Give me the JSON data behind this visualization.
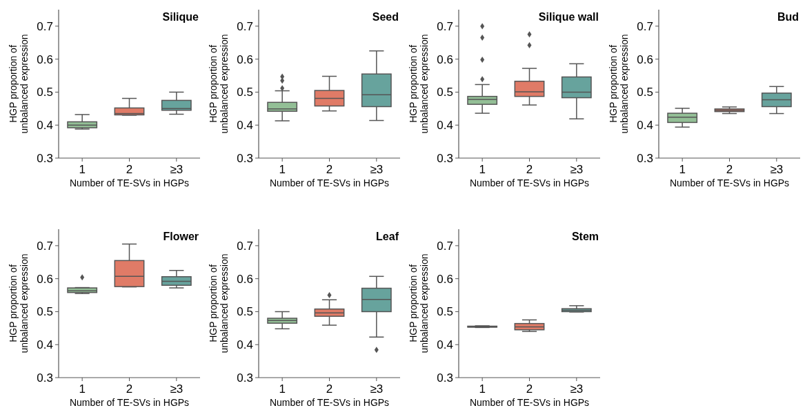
{
  "chart_data": [
    {
      "type": "box",
      "title": "Silique",
      "xlabel": "Number of TE-SVs in HGPs",
      "ylabel": "HGP proportion of\nunbalanced expression",
      "categories": [
        "1",
        "2",
        "≥3"
      ],
      "colors": [
        "#93bf96",
        "#e07b67",
        "#67a39d"
      ],
      "ylim": [
        0.3,
        0.75
      ],
      "yticks": [
        0.3,
        0.4,
        0.5,
        0.6,
        0.7
      ],
      "boxes": [
        {
          "low": 0.388,
          "q1": 0.392,
          "median": 0.4,
          "q3": 0.41,
          "high": 0.432
        },
        {
          "low": 0.43,
          "q1": 0.431,
          "median": 0.435,
          "q3": 0.452,
          "high": 0.481
        },
        {
          "low": 0.433,
          "q1": 0.445,
          "median": 0.45,
          "q3": 0.475,
          "high": 0.5
        }
      ]
    },
    {
      "type": "box",
      "title": "Seed",
      "xlabel": "Number of TE-SVs in HGPs",
      "ylabel": "HGP proportion of\nunbalanced expression",
      "categories": [
        "1",
        "2",
        "≥3"
      ],
      "colors": [
        "#93bf96",
        "#e07b67",
        "#67a39d"
      ],
      "ylim": [
        0.3,
        0.75
      ],
      "yticks": [
        0.3,
        0.4,
        0.5,
        0.6,
        0.7
      ],
      "boxes": [
        {
          "low": 0.413,
          "q1": 0.442,
          "median": 0.449,
          "q3": 0.469,
          "high": 0.504,
          "outliers": [
            0.547,
            0.535,
            0.512
          ]
        },
        {
          "low": 0.443,
          "q1": 0.458,
          "median": 0.481,
          "q3": 0.505,
          "high": 0.548
        },
        {
          "low": 0.414,
          "q1": 0.456,
          "median": 0.492,
          "q3": 0.555,
          "high": 0.625
        }
      ]
    },
    {
      "type": "box",
      "title": "Silique wall",
      "xlabel": "Number of TE-SVs in HGPs",
      "ylabel": "HGP proportion of\nunbalanced expression",
      "categories": [
        "1",
        "2",
        "≥3"
      ],
      "colors": [
        "#93bf96",
        "#e07b67",
        "#67a39d"
      ],
      "ylim": [
        0.3,
        0.75
      ],
      "yticks": [
        0.3,
        0.4,
        0.5,
        0.6,
        0.7
      ],
      "boxes": [
        {
          "low": 0.436,
          "q1": 0.463,
          "median": 0.478,
          "q3": 0.487,
          "high": 0.523,
          "outliers": [
            0.7,
            0.665,
            0.598,
            0.539
          ]
        },
        {
          "low": 0.461,
          "q1": 0.487,
          "median": 0.501,
          "q3": 0.533,
          "high": 0.572,
          "outliers": [
            0.675,
            0.642
          ]
        },
        {
          "low": 0.419,
          "q1": 0.483,
          "median": 0.5,
          "q3": 0.546,
          "high": 0.586
        }
      ]
    },
    {
      "type": "box",
      "title": "Bud",
      "xlabel": "Number of TE-SVs in HGPs",
      "ylabel": "HGP proportion of\nunbalanced expression",
      "categories": [
        "1",
        "2",
        "≥3"
      ],
      "colors": [
        "#93bf96",
        "#e07b67",
        "#67a39d"
      ],
      "ylim": [
        0.3,
        0.75
      ],
      "yticks": [
        0.3,
        0.4,
        0.5,
        0.6,
        0.7
      ],
      "boxes": [
        {
          "low": 0.394,
          "q1": 0.408,
          "median": 0.424,
          "q3": 0.436,
          "high": 0.451
        },
        {
          "low": 0.435,
          "q1": 0.441,
          "median": 0.445,
          "q3": 0.449,
          "high": 0.455
        },
        {
          "low": 0.435,
          "q1": 0.456,
          "median": 0.477,
          "q3": 0.497,
          "high": 0.517
        }
      ]
    },
    {
      "type": "box",
      "title": "Flower",
      "xlabel": "Number of TE-SVs in HGPs",
      "ylabel": "HGP proportion of\nunbalanced expression",
      "categories": [
        "1",
        "2",
        "≥3"
      ],
      "colors": [
        "#93bf96",
        "#e07b67",
        "#67a39d"
      ],
      "ylim": [
        0.3,
        0.75
      ],
      "yticks": [
        0.3,
        0.4,
        0.5,
        0.6,
        0.7
      ],
      "boxes": [
        {
          "low": 0.555,
          "q1": 0.558,
          "median": 0.563,
          "q3": 0.572,
          "high": 0.573,
          "outliers": [
            0.604
          ]
        },
        {
          "low": 0.575,
          "q1": 0.576,
          "median": 0.607,
          "q3": 0.655,
          "high": 0.705
        },
        {
          "low": 0.572,
          "q1": 0.58,
          "median": 0.592,
          "q3": 0.606,
          "high": 0.625
        }
      ]
    },
    {
      "type": "box",
      "title": "Leaf",
      "xlabel": "Number of TE-SVs in HGPs",
      "ylabel": "HGP proportion of\nunbalanced expression",
      "categories": [
        "1",
        "2",
        "≥3"
      ],
      "colors": [
        "#93bf96",
        "#e07b67",
        "#67a39d"
      ],
      "ylim": [
        0.3,
        0.75
      ],
      "yticks": [
        0.3,
        0.4,
        0.5,
        0.6,
        0.7
      ],
      "boxes": [
        {
          "low": 0.448,
          "q1": 0.465,
          "median": 0.473,
          "q3": 0.48,
          "high": 0.5
        },
        {
          "low": 0.459,
          "q1": 0.486,
          "median": 0.496,
          "q3": 0.508,
          "high": 0.536,
          "outliers": [
            0.55
          ]
        },
        {
          "low": 0.423,
          "q1": 0.5,
          "median": 0.537,
          "q3": 0.571,
          "high": 0.607,
          "outliers": [
            0.384
          ]
        }
      ]
    },
    {
      "type": "box",
      "title": "Stem",
      "xlabel": "Number of TE-SVs in HGPs",
      "ylabel": "HGP proportion of\nunbalanced expression",
      "categories": [
        "1",
        "2",
        "≥3"
      ],
      "colors": [
        "#93bf96",
        "#e07b67",
        "#67a39d"
      ],
      "ylim": [
        0.3,
        0.75
      ],
      "yticks": [
        0.3,
        0.4,
        0.5,
        0.6,
        0.7
      ],
      "boxes": [
        {
          "low": 0.452,
          "q1": 0.453,
          "median": 0.454,
          "q3": 0.456,
          "high": 0.457
        },
        {
          "low": 0.44,
          "q1": 0.445,
          "median": 0.454,
          "q3": 0.464,
          "high": 0.475
        },
        {
          "low": 0.499,
          "q1": 0.5,
          "median": 0.504,
          "q3": 0.509,
          "high": 0.518
        }
      ]
    }
  ]
}
